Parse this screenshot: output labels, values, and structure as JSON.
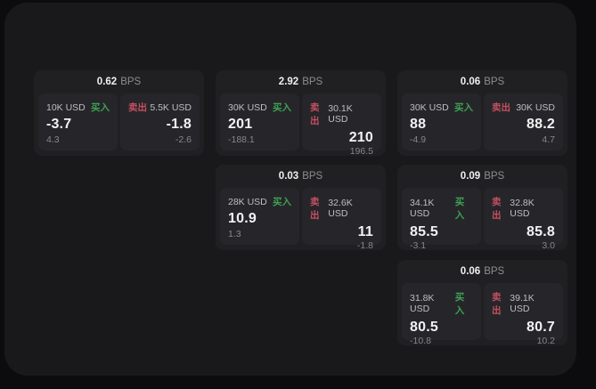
{
  "labels": {
    "buy": "买入",
    "sell": "卖出",
    "bps_unit": "BPS"
  },
  "colors": {
    "buy": "#3da254",
    "sell": "#c44f60",
    "window_bg": "#19191b",
    "card_bg": "#202022",
    "panel_bg": "#26262a"
  },
  "cards": [
    {
      "bps": "0.62",
      "grid": {
        "row": 0,
        "col": 0
      },
      "buy": {
        "size": "10K USD",
        "value": "-3.7",
        "delta": "4.3"
      },
      "sell": {
        "size": "5.5K USD",
        "value": "-1.8",
        "delta": "-2.6"
      }
    },
    {
      "bps": "2.92",
      "grid": {
        "row": 0,
        "col": 1
      },
      "buy": {
        "size": "30K USD",
        "value": "201",
        "delta": "-188.1"
      },
      "sell": {
        "size": "30.1K USD",
        "value": "210",
        "delta": "196.5"
      }
    },
    {
      "bps": "0.06",
      "grid": {
        "row": 0,
        "col": 2
      },
      "buy": {
        "size": "30K USD",
        "value": "88",
        "delta": "-4.9"
      },
      "sell": {
        "size": "30K USD",
        "value": "88.2",
        "delta": "4.7"
      }
    },
    {
      "bps": "0.03",
      "grid": {
        "row": 1,
        "col": 1
      },
      "buy": {
        "size": "28K USD",
        "value": "10.9",
        "delta": "1.3"
      },
      "sell": {
        "size": "32.6K USD",
        "value": "11",
        "delta": "-1.8"
      }
    },
    {
      "bps": "0.09",
      "grid": {
        "row": 1,
        "col": 2
      },
      "buy": {
        "size": "34.1K USD",
        "value": "85.5",
        "delta": "-3.1"
      },
      "sell": {
        "size": "32.8K USD",
        "value": "85.8",
        "delta": "3.0"
      }
    },
    {
      "bps": "0.06",
      "grid": {
        "row": 2,
        "col": 2
      },
      "buy": {
        "size": "31.8K USD",
        "value": "80.5",
        "delta": "-10.8"
      },
      "sell": {
        "size": "39.1K USD",
        "value": "80.7",
        "delta": "10.2"
      }
    }
  ]
}
